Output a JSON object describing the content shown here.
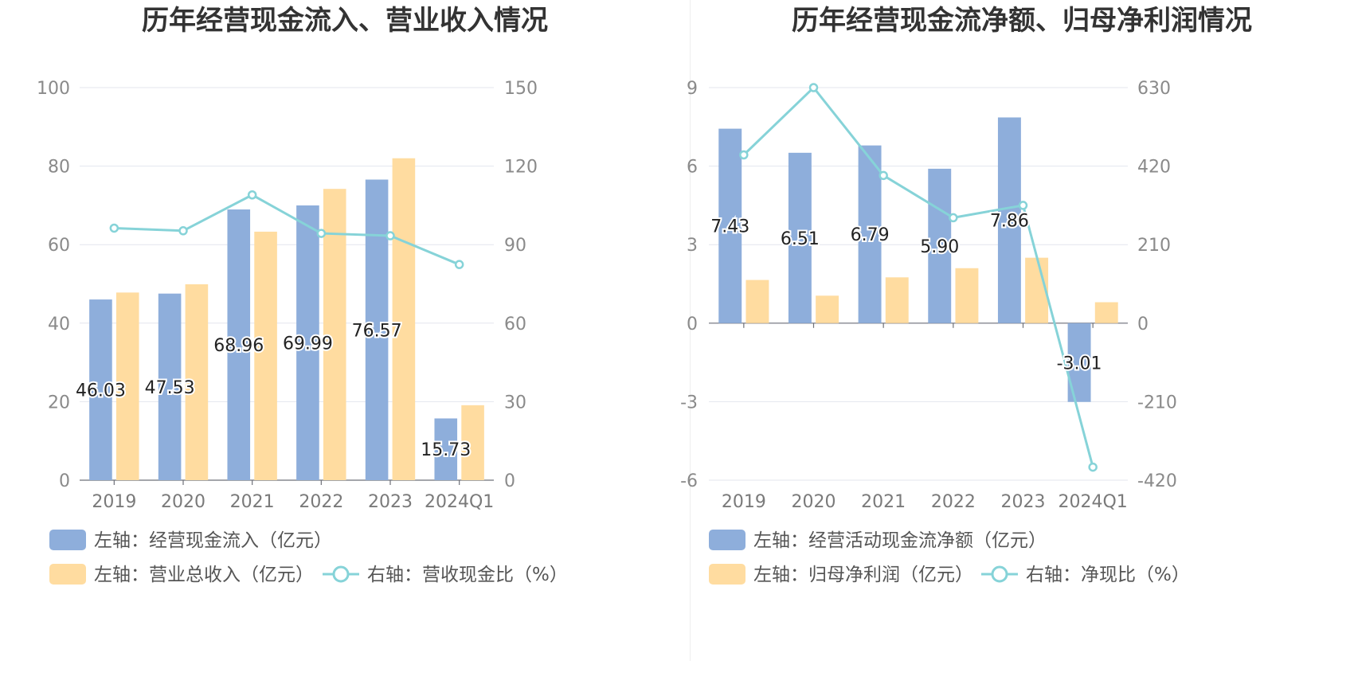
{
  "panels": [
    {
      "title": "历年经营现金流入、营业收入情况",
      "categories": [
        "2019",
        "2020",
        "2021",
        "2022",
        "2023",
        "2024Q1"
      ],
      "left_axis": {
        "min": 0,
        "max": 100,
        "ticks": [
          "0",
          "20",
          "40",
          "60",
          "80",
          "100"
        ]
      },
      "right_axis": {
        "min": 0,
        "max": 150,
        "ticks": [
          "0",
          "30",
          "60",
          "90",
          "120",
          "150"
        ]
      },
      "legend": [
        {
          "label": "左轴：经营现金流入（亿元）",
          "kind": "bar",
          "color": "#8eaedb"
        },
        {
          "label": "左轴：营业总收入（亿元）",
          "kind": "bar",
          "color": "#ffdca0"
        },
        {
          "label": "右轴：营收现金比（%）",
          "kind": "line",
          "color": "#86d3d8"
        }
      ]
    },
    {
      "title": "历年经营现金流净额、归母净利润情况",
      "categories": [
        "2019",
        "2020",
        "2021",
        "2022",
        "2023",
        "2024Q1"
      ],
      "left_axis": {
        "min": -6,
        "max": 9,
        "ticks": [
          "-6",
          "-3",
          "0",
          "3",
          "6",
          "9"
        ]
      },
      "right_axis": {
        "min": -420,
        "max": 630,
        "ticks": [
          "-420",
          "-210",
          "0",
          "210",
          "420",
          "630"
        ]
      },
      "legend": [
        {
          "label": "左轴：经营活动现金流净额（亿元）",
          "kind": "bar",
          "color": "#8eaedb"
        },
        {
          "label": "左轴：归母净利润（亿元）",
          "kind": "bar",
          "color": "#ffdca0"
        },
        {
          "label": "右轴：净现比（%）",
          "kind": "line",
          "color": "#86d3d8"
        }
      ]
    }
  ],
  "chart_data": [
    {
      "type": "bar",
      "title": "历年经营现金流入、营业收入情况",
      "categories": [
        "2019",
        "2020",
        "2021",
        "2022",
        "2023",
        "2024Q1"
      ],
      "ylim_left": [
        0,
        100
      ],
      "ylim_right": [
        0,
        150
      ],
      "grid": true,
      "legend_position": "bottom-left",
      "series": [
        {
          "name": "左轴：经营现金流入（亿元）",
          "axis": "left",
          "type": "bar",
          "values": [
            46.03,
            47.53,
            68.96,
            69.99,
            76.57,
            15.73
          ],
          "labels": [
            "46.03",
            "47.53",
            "68.96",
            "69.99",
            "76.57",
            "15.73"
          ]
        },
        {
          "name": "左轴：营业总收入（亿元）",
          "axis": "left",
          "type": "bar",
          "values": [
            47.8,
            49.9,
            63.3,
            74.2,
            82.0,
            19.1
          ]
        },
        {
          "name": "右轴：营收现金比（%）",
          "axis": "right",
          "type": "line",
          "values": [
            96.3,
            95.3,
            109.0,
            94.3,
            93.4,
            82.4
          ]
        }
      ]
    },
    {
      "type": "bar",
      "title": "历年经营现金流净额、归母净利润情况",
      "categories": [
        "2019",
        "2020",
        "2021",
        "2022",
        "2023",
        "2024Q1"
      ],
      "ylim_left": [
        -6,
        9
      ],
      "ylim_right": [
        -420,
        630
      ],
      "grid": true,
      "legend_position": "bottom-left",
      "series": [
        {
          "name": "左轴：经营活动现金流净额（亿元）",
          "axis": "left",
          "type": "bar",
          "values": [
            7.43,
            6.51,
            6.79,
            5.9,
            7.86,
            -3.01
          ],
          "labels": [
            "7.43",
            "6.51",
            "6.79",
            "5.90",
            "7.86",
            "-3.01"
          ]
        },
        {
          "name": "左轴：归母净利润（亿元）",
          "axis": "left",
          "type": "bar",
          "values": [
            1.65,
            1.05,
            1.75,
            2.1,
            2.5,
            0.8
          ]
        },
        {
          "name": "右轴：净现比（%）",
          "axis": "right",
          "type": "line",
          "values": [
            450,
            630,
            395,
            282,
            315,
            -385
          ]
        }
      ]
    }
  ]
}
